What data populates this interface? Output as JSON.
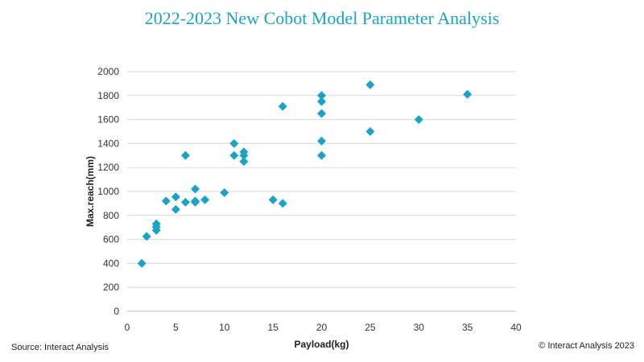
{
  "header": {
    "title": "2022-2023 New Cobot Model Parameter Analysis"
  },
  "footer": {
    "source": "Source: Interact Analysis",
    "copyright": "© Interact Analysis 2023"
  },
  "chart_data": {
    "type": "scatter",
    "title": "2022-2023 New Cobot Model Parameter Analysis",
    "xlabel": "Payload(kg)",
    "ylabel": "Max.reach(mm)",
    "xlim": [
      0,
      40
    ],
    "ylim": [
      0,
      2000
    ],
    "xticks": [
      0,
      5,
      10,
      15,
      20,
      25,
      30,
      35,
      40
    ],
    "yticks": [
      0,
      200,
      400,
      600,
      800,
      1000,
      1200,
      1400,
      1600,
      1800,
      2000
    ],
    "grid": "horizontal",
    "marker": "diamond",
    "color": "#1aa3c8",
    "points": [
      {
        "x": 1.5,
        "y": 400
      },
      {
        "x": 2,
        "y": 625
      },
      {
        "x": 3,
        "y": 675
      },
      {
        "x": 3,
        "y": 705
      },
      {
        "x": 3,
        "y": 730
      },
      {
        "x": 4,
        "y": 920
      },
      {
        "x": 5,
        "y": 850
      },
      {
        "x": 5,
        "y": 955
      },
      {
        "x": 6,
        "y": 910
      },
      {
        "x": 6,
        "y": 1300
      },
      {
        "x": 7,
        "y": 910
      },
      {
        "x": 7,
        "y": 920
      },
      {
        "x": 7,
        "y": 1020
      },
      {
        "x": 8,
        "y": 930
      },
      {
        "x": 10,
        "y": 990
      },
      {
        "x": 11,
        "y": 1300
      },
      {
        "x": 11,
        "y": 1400
      },
      {
        "x": 12,
        "y": 1250
      },
      {
        "x": 12,
        "y": 1300
      },
      {
        "x": 12,
        "y": 1330
      },
      {
        "x": 15,
        "y": 930
      },
      {
        "x": 16,
        "y": 900
      },
      {
        "x": 16,
        "y": 1710
      },
      {
        "x": 20,
        "y": 1300
      },
      {
        "x": 20,
        "y": 1420
      },
      {
        "x": 20,
        "y": 1650
      },
      {
        "x": 20,
        "y": 1750
      },
      {
        "x": 20,
        "y": 1800
      },
      {
        "x": 25,
        "y": 1500
      },
      {
        "x": 25,
        "y": 1890
      },
      {
        "x": 30,
        "y": 1600
      },
      {
        "x": 35,
        "y": 1810
      }
    ]
  }
}
